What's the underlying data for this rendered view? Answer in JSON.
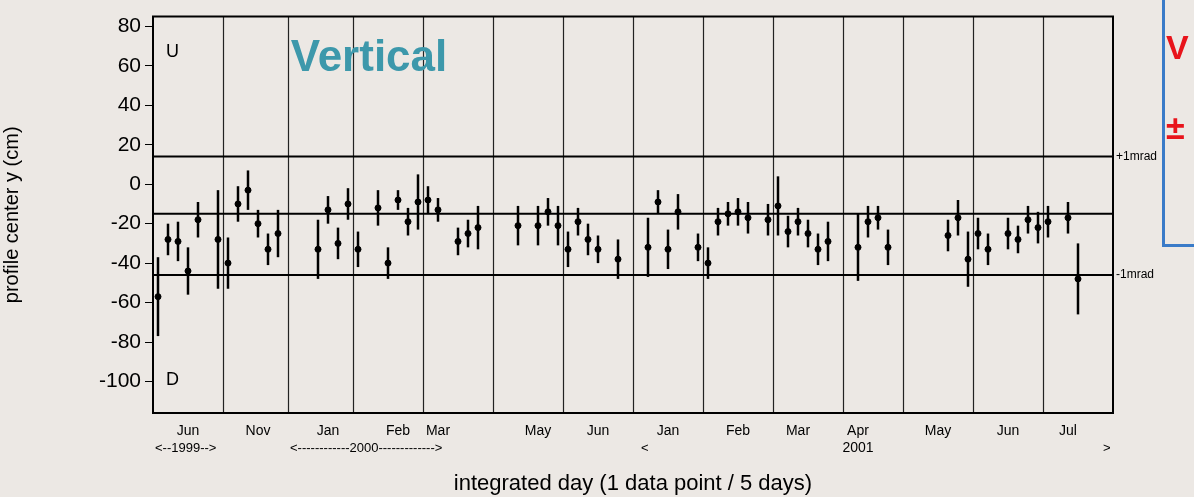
{
  "chart_data": {
    "type": "scatter",
    "title": "Vertical",
    "xlabel": "integrated day (1 data point / 5 days)",
    "ylabel": "profile center y (cm)",
    "annotations": [
      "<--1999-->",
      "<------------2000------------->",
      "<",
      ">",
      "U",
      "D",
      "V",
      "±"
    ],
    "categories": [
      null,
      null,
      null,
      "Jun",
      null,
      null,
      null,
      null,
      null,
      null,
      "Nov",
      null,
      null,
      null,
      null,
      null,
      null,
      "Jan",
      null,
      null,
      null,
      null,
      null,
      null,
      "Feb",
      null,
      null,
      null,
      "Mar",
      null,
      null,
      null,
      null,
      null,
      null,
      null,
      null,
      null,
      "May",
      null,
      null,
      null,
      null,
      null,
      "Jun",
      null,
      null,
      null,
      null,
      null,
      null,
      "Jan",
      null,
      null,
      null,
      null,
      null,
      null,
      "Feb",
      null,
      null,
      null,
      null,
      null,
      "Mar",
      null,
      null,
      null,
      null,
      null,
      "Apr\n2001",
      null,
      null,
      null,
      null,
      null,
      null,
      null,
      "May",
      null,
      null,
      null,
      null,
      null,
      null,
      "Jun",
      null,
      null,
      null,
      null,
      null,
      "Jul",
      null,
      null,
      null,
      null
    ],
    "ylim": [
      -116,
      85
    ],
    "yticks": [
      -100,
      -80,
      -60,
      -40,
      -20,
      0,
      20,
      40,
      60,
      80
    ],
    "ref_lines": [
      {
        "axis": "y",
        "value": 14,
        "label": "+1mrad"
      },
      {
        "axis": "y",
        "value": -15
      },
      {
        "axis": "y",
        "value": -46,
        "label": "-1mrad"
      }
    ],
    "legend": false,
    "marker": "circle",
    "series": [
      {
        "color": "#000000",
        "values": [
          -57,
          -28,
          -29,
          -44,
          -18,
          null,
          -28,
          -40,
          -10,
          -3,
          -20,
          -33,
          -25,
          null,
          null,
          null,
          -33,
          -13,
          -30,
          -10,
          -33,
          null,
          -12,
          -40,
          -8,
          -19,
          -9,
          -8,
          -13,
          null,
          -29,
          -25,
          -22,
          null,
          null,
          null,
          -21,
          null,
          -21,
          -14,
          -21,
          -33,
          -19,
          -28,
          -33,
          null,
          -38,
          null,
          null,
          -32,
          -9,
          -33,
          -14,
          null,
          -32,
          -40,
          -19,
          -15,
          -14,
          -17,
          null,
          -18,
          -11,
          -24,
          -19,
          -25,
          -33,
          -29,
          null,
          null,
          -32,
          -19,
          -17,
          -32,
          null,
          null,
          null,
          null,
          null,
          -26,
          -17,
          -38,
          -25,
          -33,
          null,
          -25,
          -28,
          -18,
          -22,
          -19,
          null,
          -17,
          -48,
          null,
          null,
          null
        ],
        "errors": [
          20,
          8,
          10,
          12,
          9,
          null,
          25,
          13,
          9,
          10,
          7,
          8,
          12,
          null,
          null,
          null,
          15,
          7,
          8,
          8,
          9,
          null,
          9,
          8,
          5,
          7,
          14,
          7,
          6,
          null,
          7,
          7,
          11,
          null,
          null,
          null,
          10,
          null,
          10,
          7,
          10,
          9,
          7,
          8,
          7,
          null,
          10,
          null,
          null,
          15,
          6,
          10,
          9,
          null,
          7,
          8,
          7,
          6,
          7,
          8,
          null,
          8,
          15,
          8,
          7,
          7,
          8,
          10,
          null,
          null,
          17,
          8,
          6,
          9,
          null,
          null,
          null,
          null,
          null,
          8,
          9,
          14,
          8,
          8,
          null,
          8,
          7,
          7,
          8,
          8,
          null,
          8,
          18,
          null,
          null,
          null
        ]
      }
    ]
  }
}
